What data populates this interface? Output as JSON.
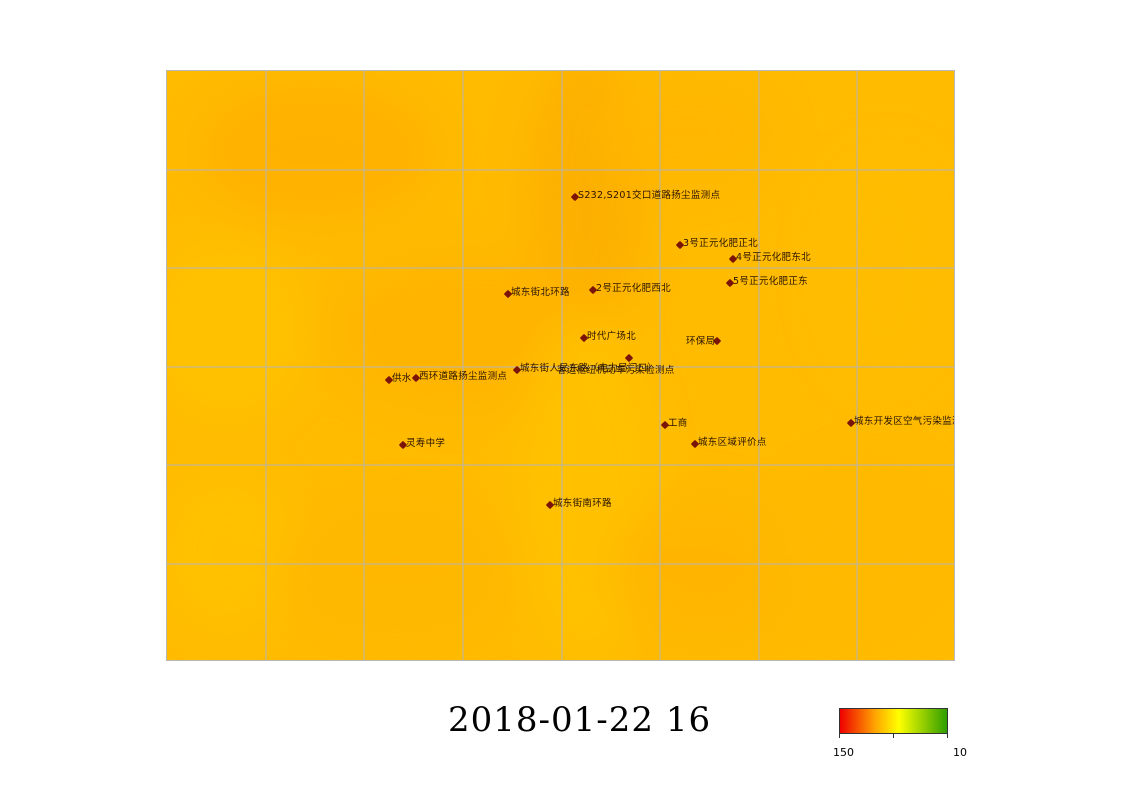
{
  "map": {
    "stations": [
      {
        "name": "S232,S201交口道路扬尘监测点"
      },
      {
        "name": "3号正元化肥正北"
      },
      {
        "name": "4号正元化肥东北"
      },
      {
        "name": "5号正元化肥正东"
      },
      {
        "name": "城东街北环路"
      },
      {
        "name": "2号正元化肥西北"
      },
      {
        "name": "时代广场北"
      },
      {
        "name": "环保局"
      },
      {
        "name": "客运枢纽机动车污染检测点"
      },
      {
        "name": "城东街人民东路（电力局门口）"
      },
      {
        "name": "供水"
      },
      {
        "name": "西环道路扬尘监测点"
      },
      {
        "name": "工商"
      },
      {
        "name": "城东开发区空气污染监测点"
      },
      {
        "name": "城东区域评价点"
      },
      {
        "name": "灵寿中学"
      },
      {
        "name": "城东街南环路"
      }
    ],
    "field_color": "#ffb800",
    "grid_color": "#b5b5b5"
  },
  "timestamp": "2018-01-22 16",
  "legend": {
    "max_label": "150",
    "min_label": "10",
    "colors": [
      "#ee0000",
      "#ffa500",
      "#ffff00",
      "#2e9e00"
    ]
  }
}
